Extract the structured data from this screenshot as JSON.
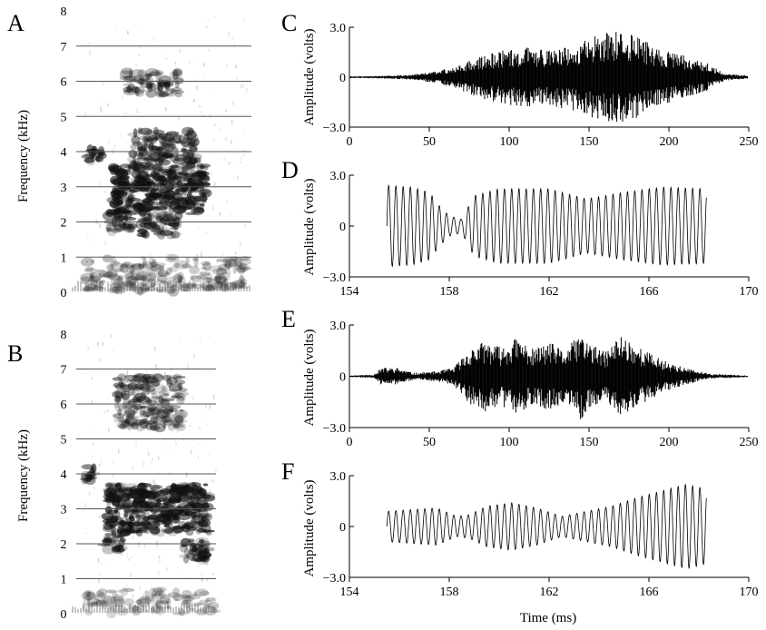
{
  "figure": {
    "colors": {
      "ink": "#000000",
      "grid": "#555555",
      "spectrogram": "#111111",
      "background": "#ffffff"
    }
  },
  "chart_data": [
    {
      "id": "A",
      "panel_label": "A",
      "type": "heatmap",
      "ylabel": "Frequency (kHz)",
      "ylim": [
        0,
        8
      ],
      "yticks": [
        "0",
        "1",
        "2",
        "3",
        "4",
        "5",
        "6",
        "7",
        "8"
      ],
      "grid": "horizontal lines at 1–7 kHz",
      "energy_regions_khz": [
        {
          "band": [
            3.7,
            4.1
          ],
          "relative_time": [
            0.02,
            0.12
          ],
          "level": 0.9
        },
        {
          "band": [
            2.2,
            3.6
          ],
          "relative_time": [
            0.18,
            0.75
          ],
          "level": 1.0
        },
        {
          "band": [
            1.7,
            2.3
          ],
          "relative_time": [
            0.15,
            0.3
          ],
          "level": 0.85
        },
        {
          "band": [
            1.6,
            2.2
          ],
          "relative_time": [
            0.35,
            0.6
          ],
          "level": 0.8
        },
        {
          "band": [
            3.6,
            4.6
          ],
          "relative_time": [
            0.3,
            0.7
          ],
          "level": 0.7
        },
        {
          "band": [
            5.6,
            6.3
          ],
          "relative_time": [
            0.25,
            0.6
          ],
          "level": 0.55
        },
        {
          "band": [
            0.0,
            1.0
          ],
          "relative_time": [
            0.0,
            1.0
          ],
          "level": 0.25
        }
      ]
    },
    {
      "id": "B",
      "panel_label": "B",
      "type": "heatmap",
      "ylabel": "Frequency (kHz)",
      "ylim": [
        0,
        8
      ],
      "yticks": [
        "0",
        "1",
        "2",
        "3",
        "4",
        "5",
        "6",
        "7",
        "8"
      ],
      "grid": "horizontal lines at 1–7 kHz",
      "energy_regions_khz": [
        {
          "band": [
            3.8,
            4.2
          ],
          "relative_time": [
            0.0,
            0.1
          ],
          "level": 0.9
        },
        {
          "band": [
            2.3,
            3.7
          ],
          "relative_time": [
            0.18,
            0.95
          ],
          "level": 1.0
        },
        {
          "band": [
            1.5,
            2.1
          ],
          "relative_time": [
            0.75,
            0.95
          ],
          "level": 0.85
        },
        {
          "band": [
            1.8,
            2.3
          ],
          "relative_time": [
            0.15,
            0.3
          ],
          "level": 0.8
        },
        {
          "band": [
            5.3,
            6.8
          ],
          "relative_time": [
            0.25,
            0.75
          ],
          "level": 0.55
        },
        {
          "band": [
            0.0,
            0.7
          ],
          "relative_time": [
            0.0,
            1.0
          ],
          "level": 0.2
        }
      ]
    },
    {
      "id": "C",
      "panel_label": "C",
      "type": "line",
      "ylabel": "Amplitude (volts)",
      "xlim": [
        0,
        250
      ],
      "ylim": [
        -3.0,
        3.0
      ],
      "xticks": [
        0,
        50,
        100,
        150,
        200,
        250
      ],
      "yticks": [
        "3.0",
        "0",
        "−3.0"
      ],
      "series": [
        {
          "values_envelope_x": [
            0,
            20,
            40,
            55,
            65,
            80,
            95,
            110,
            125,
            140,
            155,
            165,
            175,
            185,
            195,
            205,
            215,
            225,
            235,
            250
          ],
          "values_envelope_y": [
            0.05,
            0.08,
            0.15,
            0.4,
            0.6,
            1.2,
            1.6,
            1.8,
            1.7,
            2.0,
            2.6,
            2.8,
            2.7,
            2.2,
            1.7,
            1.4,
            1.2,
            0.8,
            0.2,
            0.1
          ]
        }
      ]
    },
    {
      "id": "D",
      "panel_label": "D",
      "type": "line",
      "ylabel": "Amplitude (volts)",
      "xlim": [
        154,
        170
      ],
      "ylim": [
        -3.0,
        3.0
      ],
      "xticks": [
        154,
        158,
        162,
        166,
        170
      ],
      "yticks": [
        "3.0",
        "0",
        "−3.0"
      ],
      "series": [
        {
          "x_range": [
            155.5,
            168.3
          ],
          "cycle_ms": 0.29,
          "values_envelope_x": [
            155.5,
            156.5,
            157.2,
            157.6,
            158.0,
            158.5,
            159.0,
            160.0,
            162.0,
            163.5,
            165.0,
            166.5,
            168.3
          ],
          "values_envelope_y": [
            2.4,
            2.3,
            2.0,
            1.2,
            0.6,
            0.4,
            1.8,
            2.2,
            2.2,
            1.6,
            2.0,
            2.3,
            2.2
          ]
        }
      ]
    },
    {
      "id": "E",
      "panel_label": "E",
      "type": "line",
      "ylabel": "Amplitude (volts)",
      "xlim": [
        0,
        250
      ],
      "ylim": [
        -3.0,
        3.0
      ],
      "xticks": [
        0,
        50,
        100,
        150,
        200,
        250
      ],
      "yticks": [
        "3.0",
        "0",
        "−3.0"
      ],
      "series": [
        {
          "values_envelope_x": [
            0,
            15,
            20,
            30,
            40,
            55,
            65,
            75,
            85,
            95,
            105,
            115,
            125,
            135,
            145,
            150,
            160,
            170,
            180,
            195,
            210,
            225,
            250
          ],
          "values_envelope_y": [
            0.05,
            0.1,
            0.5,
            0.5,
            0.2,
            0.3,
            0.5,
            1.6,
            2.1,
            1.7,
            2.3,
            1.6,
            2.0,
            1.5,
            2.6,
            2.0,
            1.4,
            2.5,
            1.8,
            1.0,
            0.5,
            0.15,
            0.05
          ]
        }
      ]
    },
    {
      "id": "F",
      "panel_label": "F",
      "type": "line",
      "ylabel": "Amplitude (volts)",
      "xlabel": "Time (ms)",
      "xlim": [
        154,
        170
      ],
      "ylim": [
        -3.0,
        3.0
      ],
      "xticks": [
        154,
        158,
        162,
        166,
        170
      ],
      "yticks": [
        "3.0",
        "0",
        "−3.0"
      ],
      "series": [
        {
          "x_range": [
            155.5,
            168.3
          ],
          "cycle_ms": 0.29,
          "values_envelope_x": [
            155.5,
            156.5,
            157.5,
            158.3,
            158.8,
            159.5,
            160.5,
            161.5,
            162.5,
            163.5,
            164.5,
            165.5,
            166.5,
            167.5,
            168.3
          ],
          "values_envelope_y": [
            0.9,
            1.0,
            1.1,
            0.6,
            0.7,
            1.2,
            1.4,
            1.1,
            0.6,
            0.9,
            1.2,
            1.7,
            2.1,
            2.5,
            2.2
          ]
        }
      ]
    }
  ]
}
